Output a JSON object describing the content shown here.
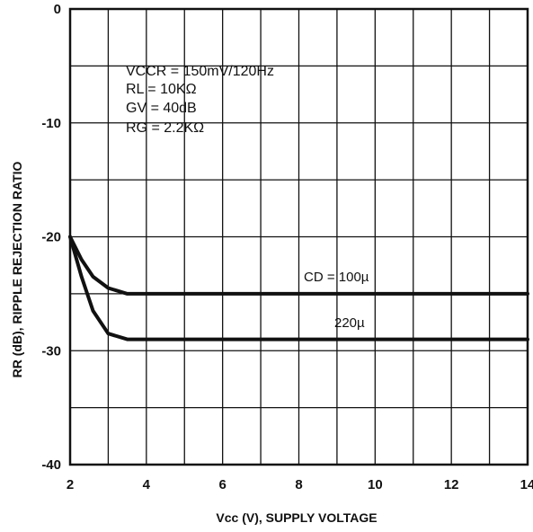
{
  "chart_data": {
    "type": "line",
    "xlabel": "Vcc (V), SUPPLY VOLTAGE",
    "ylabel": "RR (dB), RIPPLE REJECTION RATIO",
    "xlim": [
      2,
      14
    ],
    "ylim": [
      -40,
      0
    ],
    "xticks": [
      2,
      4,
      6,
      8,
      10,
      12,
      14
    ],
    "yticks": [
      0,
      -10,
      -20,
      -30,
      -40
    ],
    "ytick_labels": [
      "0",
      "-10",
      "-20",
      "-30",
      "-40"
    ],
    "grid": true,
    "conditions": [
      "VCCR = 150mV/120Hz",
      "RL = 10KΩ",
      "GV = 40dB",
      "RG = 2.2KΩ"
    ],
    "series": [
      {
        "name": "CD = 100µ",
        "x": [
          2,
          2.3,
          2.6,
          3.0,
          3.5,
          4.0,
          6,
          8,
          10,
          12,
          14
        ],
        "y": [
          -20,
          -22.0,
          -23.5,
          -24.5,
          -25.0,
          -25.0,
          -25.0,
          -25.0,
          -25.0,
          -25.0,
          -25.0
        ]
      },
      {
        "name": "220µ",
        "x": [
          2,
          2.3,
          2.6,
          3.0,
          3.5,
          4.0,
          6,
          8,
          10,
          12,
          14
        ],
        "y": [
          -20,
          -23.5,
          -26.5,
          -28.5,
          -29.0,
          -29.0,
          -29.0,
          -29.0,
          -29.0,
          -29.0,
          -29.0
        ]
      }
    ]
  }
}
